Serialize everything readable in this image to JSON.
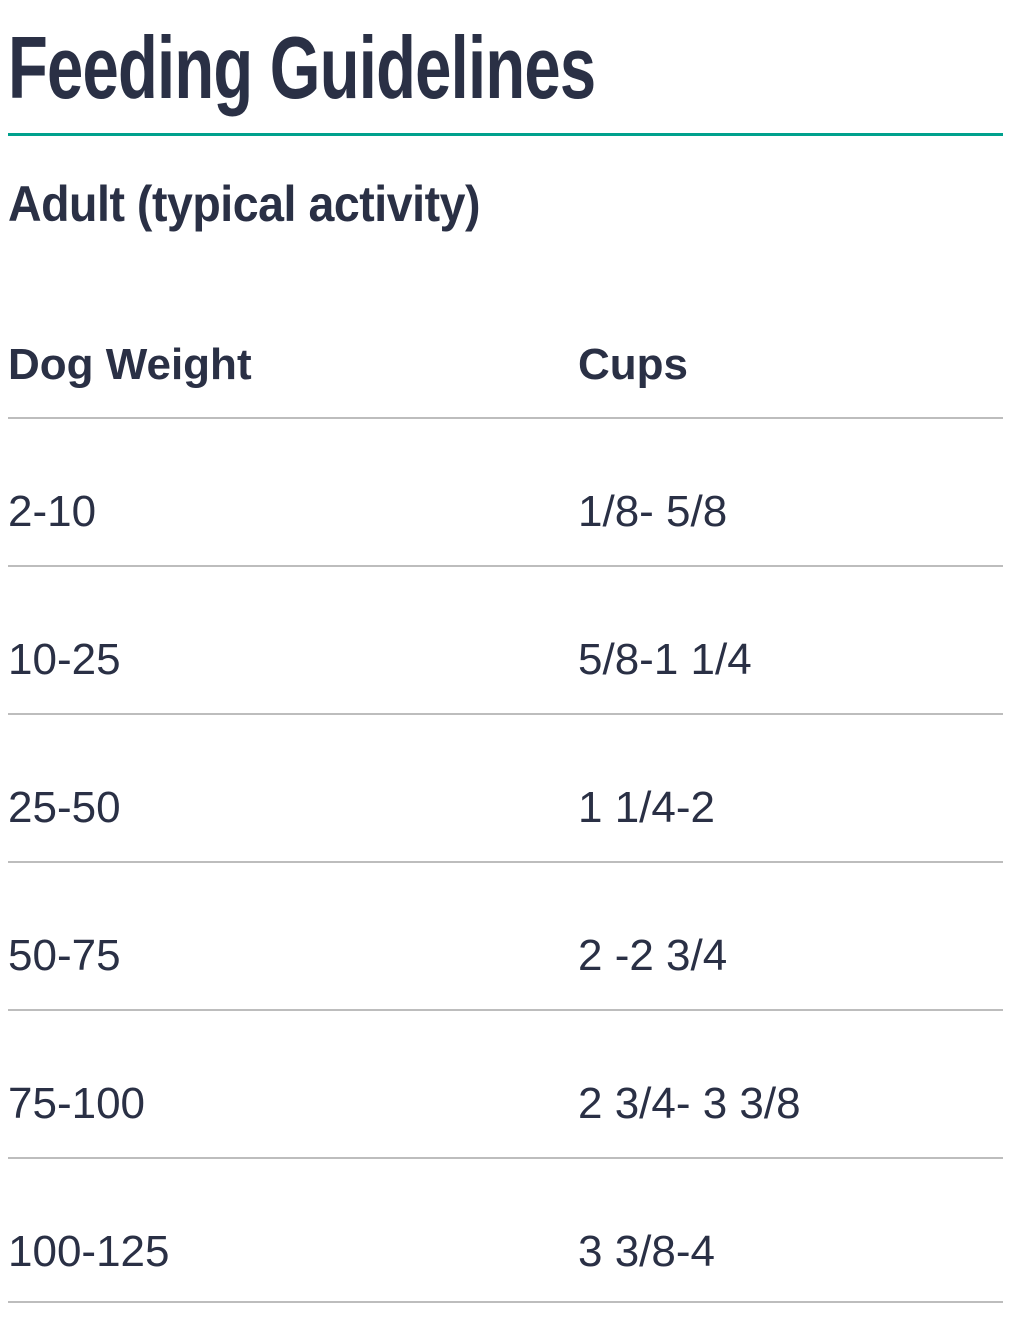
{
  "page": {
    "title": "Feeding Guidelines",
    "section_heading": "Adult (typical activity)"
  },
  "table": {
    "columns": {
      "dog_weight": "Dog Weight",
      "cups": "Cups"
    },
    "rows": [
      {
        "dog_weight": "2-10",
        "cups": "1/8- 5/8"
      },
      {
        "dog_weight": "10-25",
        "cups": "5/8-1 1/4"
      },
      {
        "dog_weight": "25-50",
        "cups": "1 1/4-2"
      },
      {
        "dog_weight": "50-75",
        "cups": "2 -2 3/4"
      },
      {
        "dog_weight": "75-100",
        "cups": "2 3/4- 3 3/8"
      },
      {
        "dog_weight": "100-125",
        "cups": "3 3/8-4"
      }
    ]
  },
  "colors": {
    "text_navy": "#2a3045",
    "accent_teal": "#00a18d",
    "divider_gray": "#bdbdbd"
  }
}
